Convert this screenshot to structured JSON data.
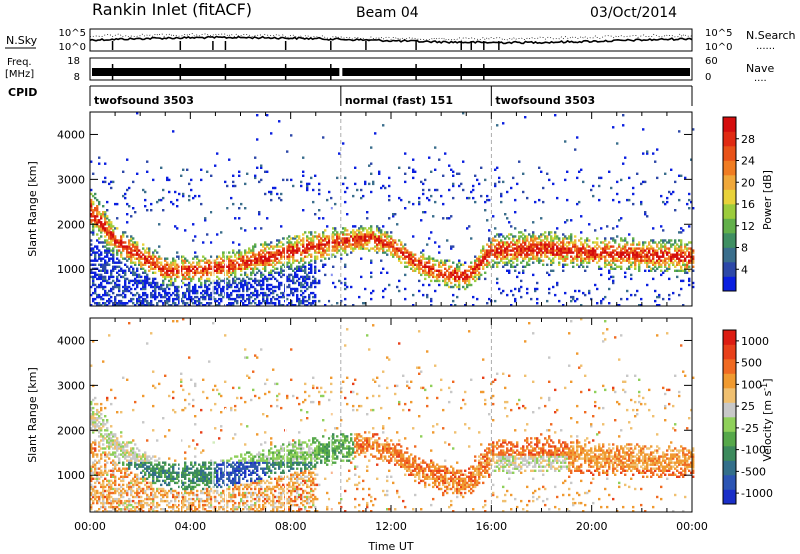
{
  "header": {
    "station": "Rankin Inlet (fitACF)",
    "beam": "Beam 04",
    "date": "03/Oct/2014"
  },
  "noise_panel": {
    "left_label": "N.Sky",
    "right_label": "N.Search",
    "right_legend_line": "......",
    "left_ticks": [
      "10^5",
      "10^0"
    ],
    "right_ticks": [
      "10^5",
      "10^0"
    ]
  },
  "freq_panel": {
    "left_label_1": "Freq.",
    "left_label_2": "[MHz]",
    "right_label": "Nave",
    "right_legend_line": "....",
    "left_ticks": [
      "18",
      "8"
    ],
    "right_ticks": [
      "60",
      "0"
    ]
  },
  "cpid_panel": {
    "label": "CPID",
    "segments": [
      {
        "name": "twofsound 3503",
        "start_hour": 0,
        "end_hour": 10
      },
      {
        "name": "normal (fast) 151",
        "start_hour": 10,
        "end_hour": 16
      },
      {
        "name": "twofsound 3503",
        "start_hour": 16,
        "end_hour": 24
      }
    ]
  },
  "colors": {
    "power": [
      "#0a1fe0",
      "#2d48a8",
      "#3a6e8c",
      "#3f8f62",
      "#62b04a",
      "#9ccc3c",
      "#e8d23a",
      "#f0a83a",
      "#f07c22",
      "#e85218",
      "#e02a12",
      "#d40d0d"
    ],
    "velocity": [
      "#1a2fc8",
      "#2c55b4",
      "#336f8a",
      "#3c8a5c",
      "#56a84a",
      "#8fd05a",
      "#c8c8c8",
      "#f0c070",
      "#f09a30",
      "#f06a22",
      "#e8401a",
      "#dc1c12"
    ]
  },
  "chart_data": [
    {
      "type": "heatmap",
      "name": "power",
      "xlabel": "",
      "ylabel": "Slant Range [km]",
      "xlim": [
        0,
        24
      ],
      "ylim": [
        180,
        4500
      ],
      "yticks": [
        1000,
        2000,
        3000,
        4000
      ],
      "colorbar": {
        "label": "Power [dB]",
        "range": [
          0,
          32
        ],
        "ticks": [
          "4",
          "8",
          "12",
          "16",
          "20",
          "24",
          "28"
        ]
      },
      "echo_band_range_km": [
        [
          0,
          2300,
          380
        ],
        [
          1,
          1600,
          280
        ],
        [
          3,
          950,
          260
        ],
        [
          5,
          1000,
          260
        ],
        [
          7,
          1250,
          290
        ],
        [
          9,
          1500,
          300
        ],
        [
          11,
          1680,
          240
        ],
        [
          12,
          1520,
          240
        ],
        [
          13,
          1100,
          240
        ],
        [
          14,
          900,
          260
        ],
        [
          15,
          800,
          260
        ],
        [
          16,
          1380,
          320
        ],
        [
          18,
          1450,
          320
        ],
        [
          20,
          1350,
          300
        ],
        [
          22,
          1300,
          300
        ],
        [
          24,
          1250,
          300
        ]
      ]
    },
    {
      "type": "heatmap",
      "name": "velocity",
      "xlabel": "Time UT",
      "ylabel": "Slant Range [km]",
      "xlim": [
        0,
        24
      ],
      "ylim": [
        180,
        4500
      ],
      "yticks": [
        1000,
        2000,
        3000,
        4000
      ],
      "xticks": [
        "00:00",
        "04:00",
        "08:00",
        "12:00",
        "16:00",
        "20:00",
        "00:00"
      ],
      "colorbar": {
        "label": "Velocity [m s^-1]",
        "ticks": [
          "1000",
          "500",
          "100",
          "25",
          "-25",
          "-100",
          "-500",
          "-1000"
        ]
      }
    }
  ]
}
